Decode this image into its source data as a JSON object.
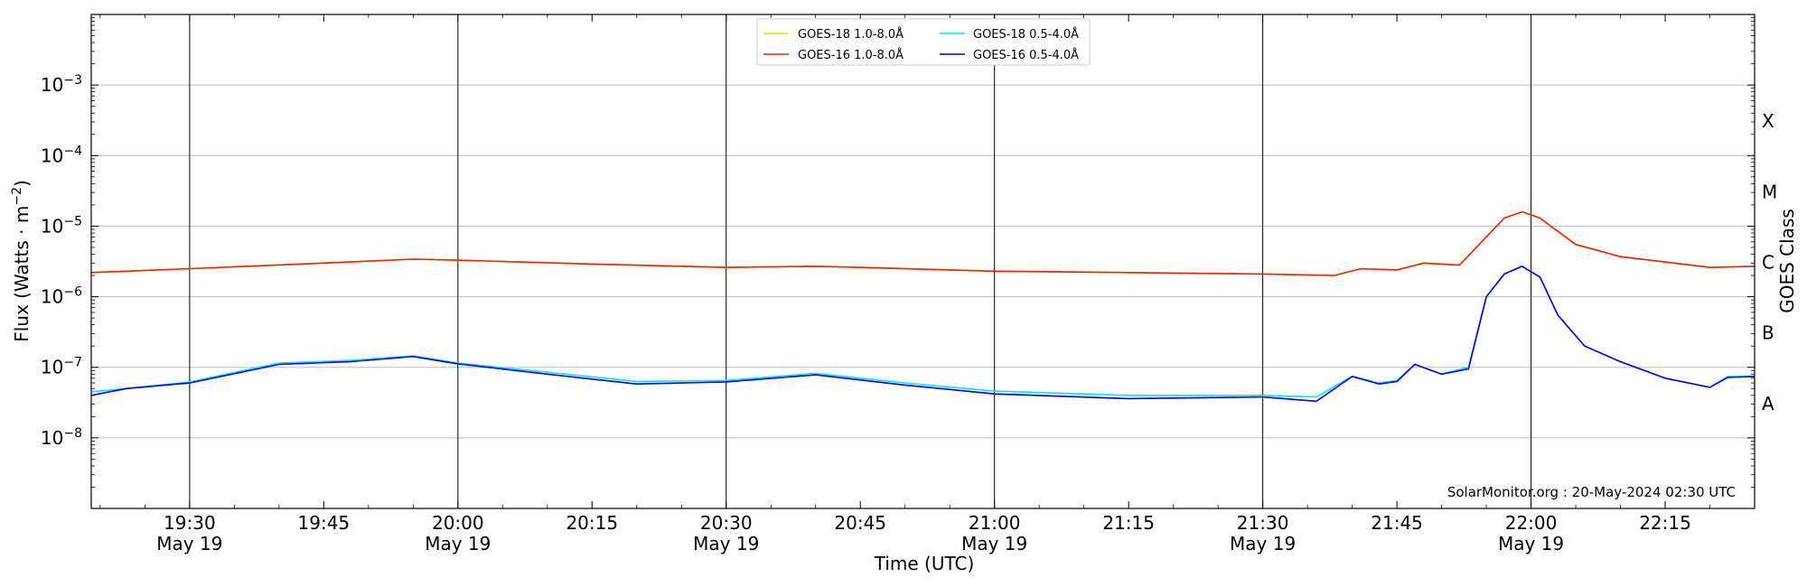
{
  "chart_data": {
    "type": "line",
    "title": "",
    "xlabel": "Time (UTC)",
    "ylabel": "Flux (Watts · m",
    "ylabel_sup": "−2",
    "ylabel_close": ")",
    "y2label": "GOES Class",
    "yscale": "log",
    "ylim": [
      1e-09,
      0.01
    ],
    "xlim": [
      "19:19",
      "22:25"
    ],
    "grid": "horizontal at each decade",
    "y_ticks": [
      {
        "base": "10",
        "exp": "−3"
      },
      {
        "base": "10",
        "exp": "−4"
      },
      {
        "base": "10",
        "exp": "−5"
      },
      {
        "base": "10",
        "exp": "−6"
      },
      {
        "base": "10",
        "exp": "−7"
      },
      {
        "base": "10",
        "exp": "−8"
      }
    ],
    "x_ticks": [
      {
        "time": "19:30",
        "date": "May 19"
      },
      {
        "time": "19:45",
        "date": ""
      },
      {
        "time": "20:00",
        "date": "May 19"
      },
      {
        "time": "20:15",
        "date": ""
      },
      {
        "time": "20:30",
        "date": "May 19"
      },
      {
        "time": "20:45",
        "date": ""
      },
      {
        "time": "21:00",
        "date": "May 19"
      },
      {
        "time": "21:15",
        "date": ""
      },
      {
        "time": "21:30",
        "date": "May 19"
      },
      {
        "time": "21:45",
        "date": ""
      },
      {
        "time": "22:00",
        "date": "May 19"
      },
      {
        "time": "22:15",
        "date": ""
      }
    ],
    "goes_classes": [
      "X",
      "M",
      "C",
      "B",
      "A"
    ],
    "legend_position": "top-center",
    "legend": [
      {
        "label": "GOES-18 1.0-8.0Å",
        "color": "#ffd700"
      },
      {
        "label": "GOES-18 0.5-4.0Å",
        "color": "#00e5ee"
      },
      {
        "label": "GOES-16 1.0-8.0Å",
        "color": "#ee2200"
      },
      {
        "label": "GOES-16 0.5-4.0Å",
        "color": "#0000ee"
      }
    ],
    "annotation": "SolarMonitor.org : 20-May-2024 02:30 UTC",
    "series": [
      {
        "name": "GOES-18 1.0-8.0Å",
        "color": "#ffd700",
        "x": [
          "19:19",
          "19:30",
          "19:45",
          "19:55",
          "20:00",
          "20:15",
          "20:30",
          "20:40",
          "20:45",
          "21:00",
          "21:15",
          "21:30",
          "21:38",
          "21:41",
          "21:45",
          "21:48",
          "21:52",
          "21:57",
          "21:59",
          "22:01",
          "22:05",
          "22:10",
          "22:20",
          "22:25"
        ],
        "values": [
          2.2e-06,
          2.5e-06,
          3e-06,
          3.4e-06,
          3.3e-06,
          2.9e-06,
          2.6e-06,
          2.7e-06,
          2.6e-06,
          2.3e-06,
          2.2e-06,
          2.1e-06,
          2e-06,
          2.5e-06,
          2.4e-06,
          3e-06,
          2.8e-06,
          1.3e-05,
          1.6e-05,
          1.3e-05,
          5.5e-06,
          3.7e-06,
          2.6e-06,
          2.7e-06
        ]
      },
      {
        "name": "GOES-16 1.0-8.0Å",
        "color": "#ee2200",
        "x": [
          "19:19",
          "19:30",
          "19:45",
          "19:55",
          "20:00",
          "20:15",
          "20:30",
          "20:40",
          "20:45",
          "21:00",
          "21:15",
          "21:30",
          "21:38",
          "21:41",
          "21:45",
          "21:48",
          "21:52",
          "21:57",
          "21:59",
          "22:01",
          "22:05",
          "22:10",
          "22:20",
          "22:25"
        ],
        "values": [
          2.2e-06,
          2.5e-06,
          3e-06,
          3.4e-06,
          3.3e-06,
          2.9e-06,
          2.6e-06,
          2.7e-06,
          2.6e-06,
          2.3e-06,
          2.2e-06,
          2.1e-06,
          2e-06,
          2.5e-06,
          2.4e-06,
          3e-06,
          2.8e-06,
          1.3e-05,
          1.6e-05,
          1.3e-05,
          5.5e-06,
          3.7e-06,
          2.6e-06,
          2.7e-06
        ]
      },
      {
        "name": "GOES-18 0.5-4.0Å",
        "color": "#00e5ee",
        "x": [
          "19:19",
          "19:23",
          "19:30",
          "19:40",
          "19:48",
          "19:55",
          "20:00",
          "20:10",
          "20:20",
          "20:30",
          "20:40",
          "20:50",
          "21:00",
          "21:15",
          "21:30",
          "21:36",
          "21:40",
          "21:43",
          "21:45",
          "21:47",
          "21:50",
          "21:53",
          "21:55",
          "21:57",
          "21:59",
          "22:01",
          "22:03",
          "22:06",
          "22:10",
          "22:15",
          "22:20",
          "22:22",
          "22:25"
        ],
        "values": [
          4.5e-08,
          5e-08,
          6.2e-08,
          1.15e-07,
          1.25e-07,
          1.45e-07,
          1.15e-07,
          8.5e-08,
          6.3e-08,
          6.5e-08,
          8.2e-08,
          6e-08,
          4.6e-08,
          4e-08,
          4e-08,
          3.8e-08,
          7.5e-08,
          6e-08,
          6.5e-08,
          1.1e-07,
          8e-08,
          1e-07,
          1e-06,
          2.1e-06,
          2.7e-06,
          1.9e-06,
          5.5e-07,
          2e-07,
          1.2e-07,
          7e-08,
          5.2e-08,
          7.4e-08,
          7.5e-08
        ]
      },
      {
        "name": "GOES-16 0.5-4.0Å",
        "color": "#0000ee",
        "x": [
          "19:19",
          "19:23",
          "19:30",
          "19:40",
          "19:48",
          "19:55",
          "20:00",
          "20:10",
          "20:20",
          "20:30",
          "20:40",
          "20:50",
          "21:00",
          "21:15",
          "21:30",
          "21:36",
          "21:40",
          "21:43",
          "21:45",
          "21:47",
          "21:50",
          "21:53",
          "21:55",
          "21:57",
          "21:59",
          "22:01",
          "22:03",
          "22:06",
          "22:10",
          "22:15",
          "22:20",
          "22:22",
          "22:25"
        ],
        "values": [
          4e-08,
          5e-08,
          6e-08,
          1.1e-07,
          1.2e-07,
          1.42e-07,
          1.12e-07,
          8e-08,
          5.8e-08,
          6.2e-08,
          7.8e-08,
          5.6e-08,
          4.2e-08,
          3.6e-08,
          3.8e-08,
          3.3e-08,
          7.4e-08,
          5.8e-08,
          6.3e-08,
          1.1e-07,
          8e-08,
          9.5e-08,
          1e-06,
          2.1e-06,
          2.7e-06,
          1.9e-06,
          5.5e-07,
          2e-07,
          1.2e-07,
          7e-08,
          5.2e-08,
          7.2e-08,
          7.4e-08
        ]
      }
    ]
  }
}
